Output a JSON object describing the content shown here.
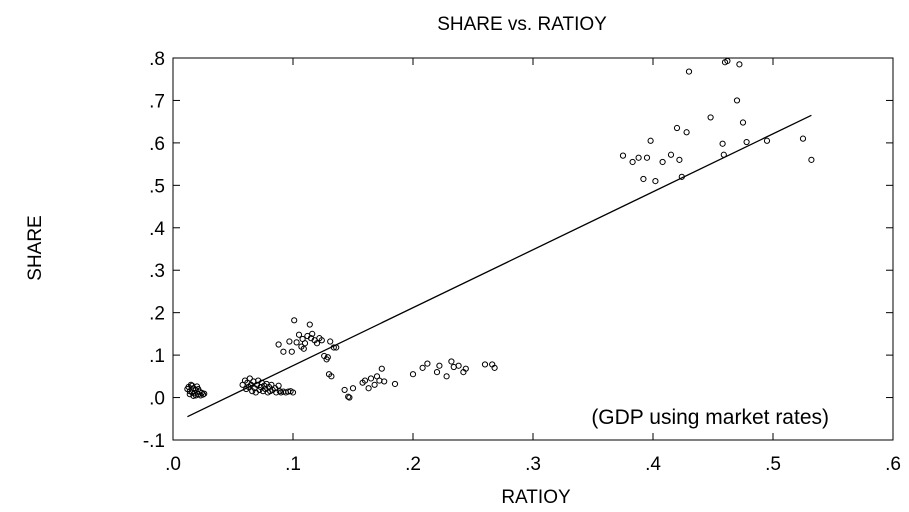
{
  "chart_data": {
    "type": "scatter",
    "title": "SHARE vs. RATIOY",
    "xlabel": "RATIOY",
    "ylabel": "SHARE",
    "annotation": "(GDP using market rates)",
    "xlim": [
      0.0,
      0.6
    ],
    "ylim": [
      -0.1,
      0.8
    ],
    "x_ticks": [
      ".0",
      ".1",
      ".2",
      ".3",
      ".4",
      ".5",
      ".6"
    ],
    "y_ticks": [
      ".8",
      ".7",
      ".6",
      ".5",
      ".4",
      ".3",
      ".2",
      ".1",
      ".0",
      "-.1"
    ],
    "x_tick_values": [
      0.0,
      0.1,
      0.2,
      0.3,
      0.4,
      0.5,
      0.6
    ],
    "y_tick_values": [
      0.8,
      0.7,
      0.6,
      0.5,
      0.4,
      0.3,
      0.2,
      0.1,
      0.0,
      -0.1
    ],
    "grid": false,
    "marker": "open-circle",
    "fit_line": {
      "x": [
        0.012,
        0.532
      ],
      "y": [
        -0.045,
        0.665
      ]
    },
    "points": [
      [
        0.012,
        0.02
      ],
      [
        0.013,
        0.025
      ],
      [
        0.014,
        0.015
      ],
      [
        0.015,
        0.03
      ],
      [
        0.016,
        0.012
      ],
      [
        0.017,
        0.022
      ],
      [
        0.018,
        0.01
      ],
      [
        0.019,
        0.018
      ],
      [
        0.02,
        0.026
      ],
      [
        0.021,
        0.008
      ],
      [
        0.022,
        0.014
      ],
      [
        0.023,
        0.005
      ],
      [
        0.024,
        0.011
      ],
      [
        0.025,
        0.007
      ],
      [
        0.026,
        0.009
      ],
      [
        0.014,
        0.008
      ],
      [
        0.016,
        0.028
      ],
      [
        0.019,
        0.005
      ],
      [
        0.021,
        0.02
      ],
      [
        0.017,
        0.004
      ],
      [
        0.058,
        0.03
      ],
      [
        0.06,
        0.04
      ],
      [
        0.061,
        0.02
      ],
      [
        0.062,
        0.035
      ],
      [
        0.063,
        0.025
      ],
      [
        0.064,
        0.045
      ],
      [
        0.065,
        0.03
      ],
      [
        0.066,
        0.015
      ],
      [
        0.067,
        0.038
      ],
      [
        0.068,
        0.022
      ],
      [
        0.069,
        0.012
      ],
      [
        0.07,
        0.03
      ],
      [
        0.071,
        0.04
      ],
      [
        0.072,
        0.018
      ],
      [
        0.073,
        0.025
      ],
      [
        0.074,
        0.035
      ],
      [
        0.075,
        0.015
      ],
      [
        0.076,
        0.028
      ],
      [
        0.077,
        0.02
      ],
      [
        0.078,
        0.032
      ],
      [
        0.079,
        0.012
      ],
      [
        0.08,
        0.025
      ],
      [
        0.081,
        0.015
      ],
      [
        0.082,
        0.03
      ],
      [
        0.083,
        0.018
      ],
      [
        0.085,
        0.022
      ],
      [
        0.086,
        0.012
      ],
      [
        0.088,
        0.028
      ],
      [
        0.089,
        0.015
      ],
      [
        0.09,
        0.012
      ],
      [
        0.092,
        0.014
      ],
      [
        0.094,
        0.012
      ],
      [
        0.096,
        0.014
      ],
      [
        0.098,
        0.015
      ],
      [
        0.1,
        0.012
      ],
      [
        0.088,
        0.125
      ],
      [
        0.092,
        0.108
      ],
      [
        0.097,
        0.132
      ],
      [
        0.099,
        0.108
      ],
      [
        0.101,
        0.182
      ],
      [
        0.103,
        0.13
      ],
      [
        0.105,
        0.148
      ],
      [
        0.107,
        0.12
      ],
      [
        0.108,
        0.138
      ],
      [
        0.109,
        0.115
      ],
      [
        0.11,
        0.128
      ],
      [
        0.112,
        0.145
      ],
      [
        0.114,
        0.172
      ],
      [
        0.115,
        0.14
      ],
      [
        0.116,
        0.15
      ],
      [
        0.118,
        0.135
      ],
      [
        0.12,
        0.128
      ],
      [
        0.122,
        0.14
      ],
      [
        0.124,
        0.135
      ],
      [
        0.126,
        0.098
      ],
      [
        0.128,
        0.09
      ],
      [
        0.129,
        0.095
      ],
      [
        0.13,
        0.055
      ],
      [
        0.131,
        0.132
      ],
      [
        0.132,
        0.05
      ],
      [
        0.134,
        0.118
      ],
      [
        0.136,
        0.118
      ],
      [
        0.143,
        0.018
      ],
      [
        0.146,
        0.002
      ],
      [
        0.147,
        0.0
      ],
      [
        0.15,
        0.022
      ],
      [
        0.158,
        0.035
      ],
      [
        0.16,
        0.04
      ],
      [
        0.163,
        0.022
      ],
      [
        0.165,
        0.045
      ],
      [
        0.168,
        0.03
      ],
      [
        0.17,
        0.05
      ],
      [
        0.172,
        0.04
      ],
      [
        0.174,
        0.068
      ],
      [
        0.176,
        0.038
      ],
      [
        0.185,
        0.032
      ],
      [
        0.2,
        0.055
      ],
      [
        0.208,
        0.07
      ],
      [
        0.212,
        0.08
      ],
      [
        0.22,
        0.06
      ],
      [
        0.222,
        0.075
      ],
      [
        0.228,
        0.05
      ],
      [
        0.232,
        0.085
      ],
      [
        0.234,
        0.072
      ],
      [
        0.238,
        0.075
      ],
      [
        0.242,
        0.06
      ],
      [
        0.244,
        0.068
      ],
      [
        0.26,
        0.078
      ],
      [
        0.266,
        0.078
      ],
      [
        0.268,
        0.07
      ],
      [
        0.375,
        0.57
      ],
      [
        0.383,
        0.555
      ],
      [
        0.388,
        0.565
      ],
      [
        0.392,
        0.515
      ],
      [
        0.395,
        0.565
      ],
      [
        0.398,
        0.605
      ],
      [
        0.402,
        0.51
      ],
      [
        0.408,
        0.555
      ],
      [
        0.415,
        0.572
      ],
      [
        0.42,
        0.635
      ],
      [
        0.422,
        0.56
      ],
      [
        0.424,
        0.52
      ],
      [
        0.428,
        0.625
      ],
      [
        0.43,
        0.768
      ],
      [
        0.448,
        0.66
      ],
      [
        0.458,
        0.598
      ],
      [
        0.459,
        0.572
      ],
      [
        0.46,
        0.79
      ],
      [
        0.462,
        0.793
      ],
      [
        0.47,
        0.7
      ],
      [
        0.472,
        0.785
      ],
      [
        0.475,
        0.648
      ],
      [
        0.478,
        0.602
      ],
      [
        0.495,
        0.605
      ],
      [
        0.525,
        0.61
      ],
      [
        0.532,
        0.56
      ]
    ]
  }
}
